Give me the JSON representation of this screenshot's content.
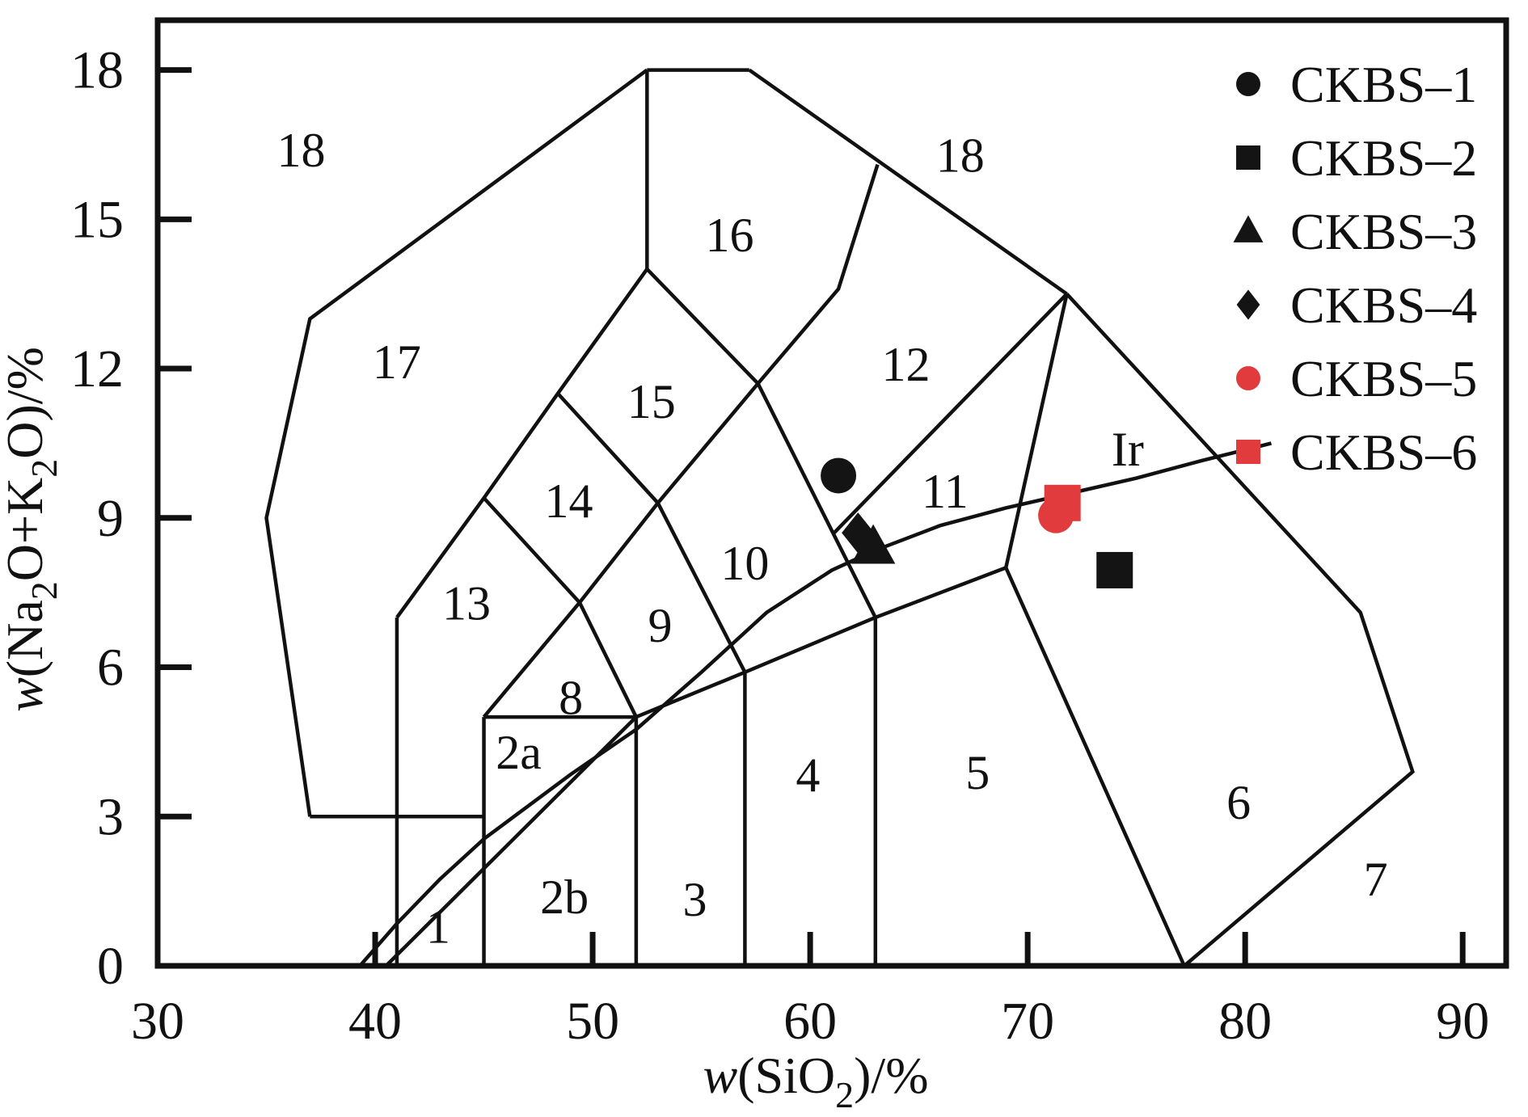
{
  "figure": {
    "kind": "TAS classification diagram",
    "colors": {
      "line": "#111111",
      "black_marker": "#141414",
      "red_marker": "#e23b3d",
      "background": "#ffffff"
    }
  },
  "chart_data": {
    "type": "scatter",
    "title": "",
    "xlabel_parts": [
      {
        "t": "w",
        "italic": true
      },
      {
        "t": "(SiO"
      },
      {
        "t": "2",
        "sub": true
      },
      {
        "t": ")/%"
      }
    ],
    "ylabel_parts": [
      {
        "t": "w",
        "italic": true
      },
      {
        "t": "(Na"
      },
      {
        "t": "2",
        "sub": true
      },
      {
        "t": "O+K"
      },
      {
        "t": "2",
        "sub": true
      },
      {
        "t": "O)/%"
      }
    ],
    "xlim": [
      30,
      92
    ],
    "ylim": [
      0,
      19
    ],
    "x_tick_labels": [
      30,
      40,
      50,
      60,
      70,
      80,
      90
    ],
    "x_ticks_marks": [
      40,
      50,
      60,
      70,
      80,
      90
    ],
    "y_tick_labels": [
      0,
      3,
      6,
      9,
      12,
      15,
      18
    ],
    "y_ticks_marks": [
      3,
      6,
      9,
      12,
      15,
      18
    ],
    "grid": false,
    "legend_position": "top-right",
    "boundary_segments": [
      [
        [
          41,
          0
        ],
        [
          41,
          7
        ]
      ],
      [
        [
          45,
          0
        ],
        [
          45,
          5
        ]
      ],
      [
        [
          52,
          0
        ],
        [
          52,
          5
        ]
      ],
      [
        [
          57,
          0
        ],
        [
          57,
          5.9
        ]
      ],
      [
        [
          63,
          0
        ],
        [
          63,
          7
        ]
      ],
      [
        [
          52.5,
          14
        ],
        [
          52.5,
          18
        ]
      ],
      [
        [
          37,
          3
        ],
        [
          45,
          3
        ]
      ],
      [
        [
          45,
          5
        ],
        [
          52,
          5
        ]
      ],
      [
        [
          52.5,
          18
        ],
        [
          57.2,
          18
        ]
      ],
      [
        [
          52,
          5
        ],
        [
          57,
          5.9
        ],
        [
          63,
          7
        ],
        [
          69,
          8
        ]
      ],
      [
        [
          69,
          8
        ],
        [
          77.2,
          0
        ]
      ],
      [
        [
          77.2,
          0
        ],
        [
          87.7,
          3.9
        ],
        [
          85.3,
          7.1
        ],
        [
          71.8,
          13.5
        ]
      ],
      [
        [
          69,
          8
        ],
        [
          71.8,
          13.5
        ]
      ],
      [
        [
          71.8,
          13.5
        ],
        [
          57.2,
          18
        ]
      ],
      [
        [
          52.5,
          18
        ],
        [
          37,
          13
        ],
        [
          35,
          9
        ],
        [
          37,
          3
        ]
      ],
      [
        [
          41,
          7
        ],
        [
          45,
          9.4
        ],
        [
          48.4,
          11.5
        ],
        [
          52.5,
          14
        ]
      ],
      [
        [
          45,
          5
        ],
        [
          49.4,
          7.3
        ],
        [
          53,
          9.3
        ],
        [
          57.6,
          11.7
        ]
      ],
      [
        [
          45,
          9.4
        ],
        [
          49.4,
          7.3
        ]
      ],
      [
        [
          48.4,
          11.5
        ],
        [
          53,
          9.3
        ]
      ],
      [
        [
          52.5,
          14
        ],
        [
          57.6,
          11.7
        ]
      ],
      [
        [
          53,
          9.3
        ],
        [
          57,
          5.9
        ]
      ],
      [
        [
          49.4,
          7.3
        ],
        [
          52,
          5
        ]
      ],
      [
        [
          57.6,
          11.7
        ],
        [
          63,
          7
        ]
      ],
      [
        [
          57.6,
          11.7
        ],
        [
          61.3,
          13.6
        ],
        [
          63.1,
          16.1
        ]
      ],
      [
        [
          61.1,
          8.7
        ],
        [
          71.8,
          13.5
        ]
      ],
      [
        [
          40.5,
          0
        ],
        [
          52,
          5
        ]
      ]
    ],
    "irvine_line": {
      "label": "Ir",
      "label_pos": [
        74.6,
        10.05
      ],
      "points": [
        [
          39.3,
          0
        ],
        [
          41,
          0.85
        ],
        [
          43,
          1.75
        ],
        [
          45,
          2.55
        ],
        [
          47,
          3.2
        ],
        [
          49,
          3.85
        ],
        [
          52,
          4.75
        ],
        [
          55,
          5.9
        ],
        [
          58,
          7.1
        ],
        [
          61,
          7.95
        ],
        [
          63,
          8.35
        ],
        [
          66,
          8.85
        ],
        [
          69,
          9.2
        ],
        [
          72,
          9.5
        ],
        [
          75,
          9.8
        ],
        [
          78,
          10.15
        ],
        [
          81.2,
          10.5
        ]
      ]
    },
    "field_labels": [
      {
        "text": "18",
        "x": 36.6,
        "y": 16.4
      },
      {
        "text": "16",
        "x": 56.3,
        "y": 14.7
      },
      {
        "text": "18",
        "x": 66.9,
        "y": 16.3
      },
      {
        "text": "17",
        "x": 41.0,
        "y": 12.15
      },
      {
        "text": "15",
        "x": 52.7,
        "y": 11.35
      },
      {
        "text": "12",
        "x": 64.4,
        "y": 12.1
      },
      {
        "text": "14",
        "x": 48.9,
        "y": 9.35
      },
      {
        "text": "13",
        "x": 44.2,
        "y": 7.3
      },
      {
        "text": "9",
        "x": 53.1,
        "y": 6.85
      },
      {
        "text": "10",
        "x": 57.0,
        "y": 8.1
      },
      {
        "text": "11",
        "x": 66.2,
        "y": 9.55
      },
      {
        "text": "8",
        "x": 49.0,
        "y": 5.4
      },
      {
        "text": "2a",
        "x": 46.6,
        "y": 4.3
      },
      {
        "text": "2b",
        "x": 48.7,
        "y": 1.4
      },
      {
        "text": "1",
        "x": 42.9,
        "y": 0.8
      },
      {
        "text": "3",
        "x": 54.7,
        "y": 1.35
      },
      {
        "text": "4",
        "x": 59.9,
        "y": 3.85
      },
      {
        "text": "5",
        "x": 67.7,
        "y": 3.9
      },
      {
        "text": "6",
        "x": 79.7,
        "y": 3.3
      },
      {
        "text": "7",
        "x": 86.0,
        "y": 1.75
      }
    ],
    "series": [
      {
        "name": "CKBS–1",
        "marker": "circle",
        "color": "#141414",
        "points": [
          [
            61.3,
            9.85
          ]
        ]
      },
      {
        "name": "CKBS–2",
        "marker": "square",
        "color": "#141414",
        "points": [
          [
            74.0,
            7.95
          ]
        ]
      },
      {
        "name": "CKBS–3",
        "marker": "triangle",
        "color": "#141414",
        "points": [
          [
            62.9,
            8.4
          ]
        ]
      },
      {
        "name": "CKBS–4",
        "marker": "diamond",
        "color": "#141414",
        "points": [
          [
            62.2,
            8.7
          ]
        ]
      },
      {
        "name": "CKBS–5",
        "marker": "circle",
        "color": "#e23b3d",
        "points": [
          [
            71.3,
            9.05
          ]
        ]
      },
      {
        "name": "CKBS–6",
        "marker": "square",
        "color": "#e23b3d",
        "points": [
          [
            71.6,
            9.3
          ]
        ]
      }
    ]
  }
}
